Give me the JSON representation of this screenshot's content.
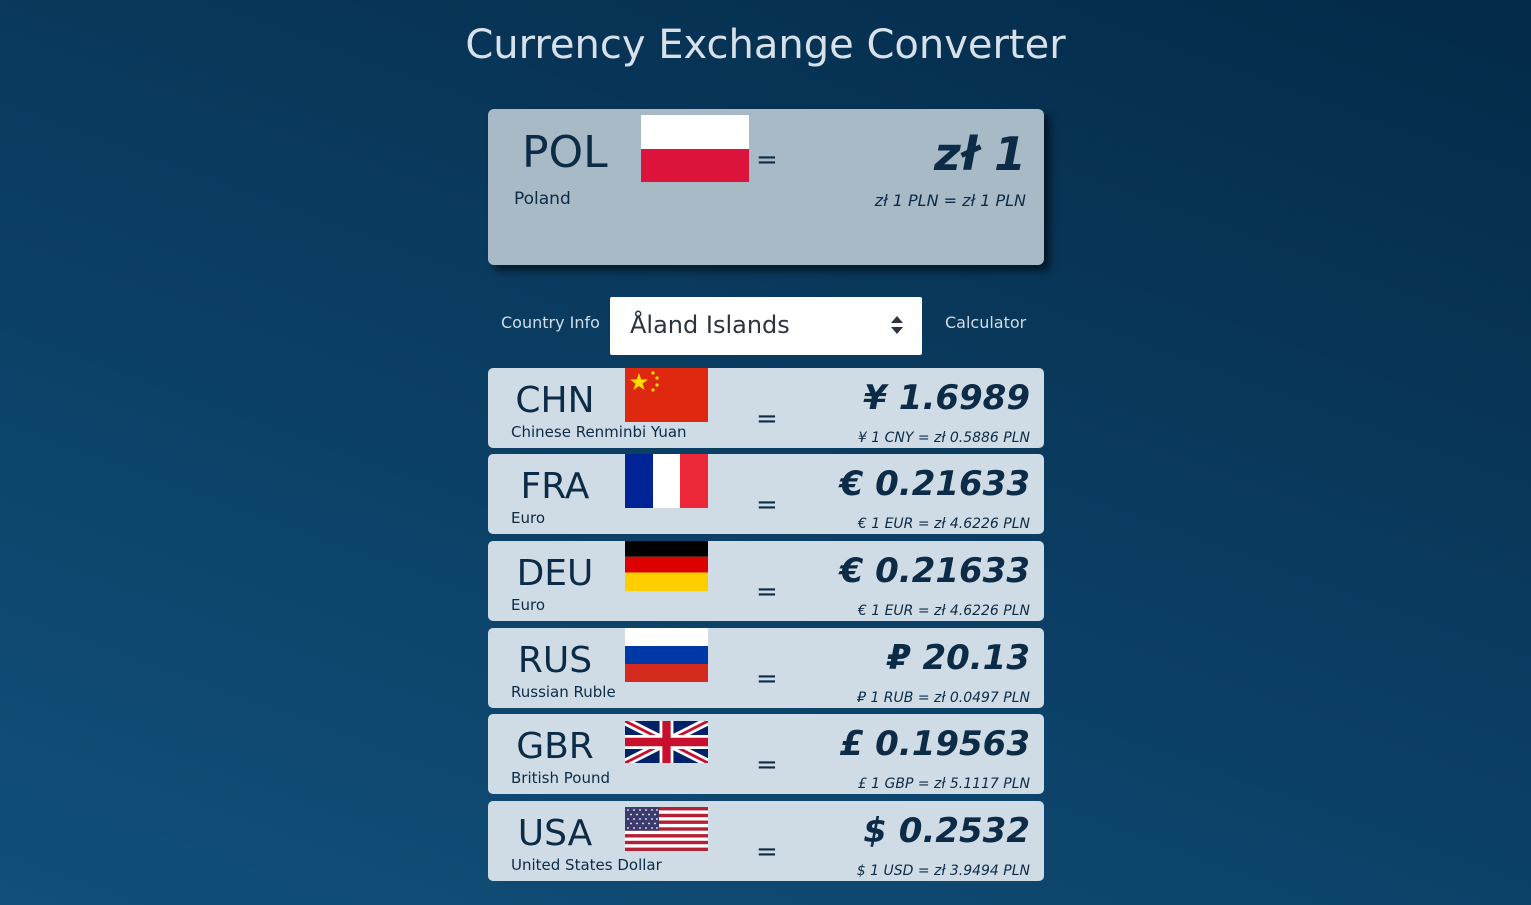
{
  "title": "Currency Exchange Converter",
  "base": {
    "code": "POL",
    "country": "Poland",
    "flag": "poland-flag-icon",
    "equals": "=",
    "amount": "zł 1",
    "rate": "zł 1 PLN = zł 1 PLN"
  },
  "controls": {
    "country_info_label": "Country Info",
    "selected_country": "Åland Islands",
    "calculator_label": "Calculator"
  },
  "rows": [
    {
      "code": "CHN",
      "name": "Chinese Renminbi Yuan",
      "flag": "china-flag-icon",
      "equals": "=",
      "amount": "¥ 1.6989",
      "rate": "¥ 1 CNY = zł 0.5886 PLN"
    },
    {
      "code": "FRA",
      "name": "Euro",
      "flag": "france-flag-icon",
      "equals": "=",
      "amount": "€ 0.21633",
      "rate": "€ 1 EUR = zł 4.6226 PLN"
    },
    {
      "code": "DEU",
      "name": "Euro",
      "flag": "germany-flag-icon",
      "equals": "=",
      "amount": "€ 0.21633",
      "rate": "€ 1 EUR = zł 4.6226 PLN"
    },
    {
      "code": "RUS",
      "name": "Russian Ruble",
      "flag": "russia-flag-icon",
      "equals": "=",
      "amount": "₽ 20.13",
      "rate": "₽ 1 RUB = zł 0.0497 PLN"
    },
    {
      "code": "GBR",
      "name": "British Pound",
      "flag": "uk-flag-icon",
      "equals": "=",
      "amount": "£ 0.19563",
      "rate": "£ 1 GBP = zł 5.1117 PLN"
    },
    {
      "code": "USA",
      "name": "United States Dollar",
      "flag": "usa-flag-icon",
      "equals": "=",
      "amount": "$ 0.2532",
      "rate": "$ 1 USD = zł 3.9494 PLN"
    }
  ]
}
